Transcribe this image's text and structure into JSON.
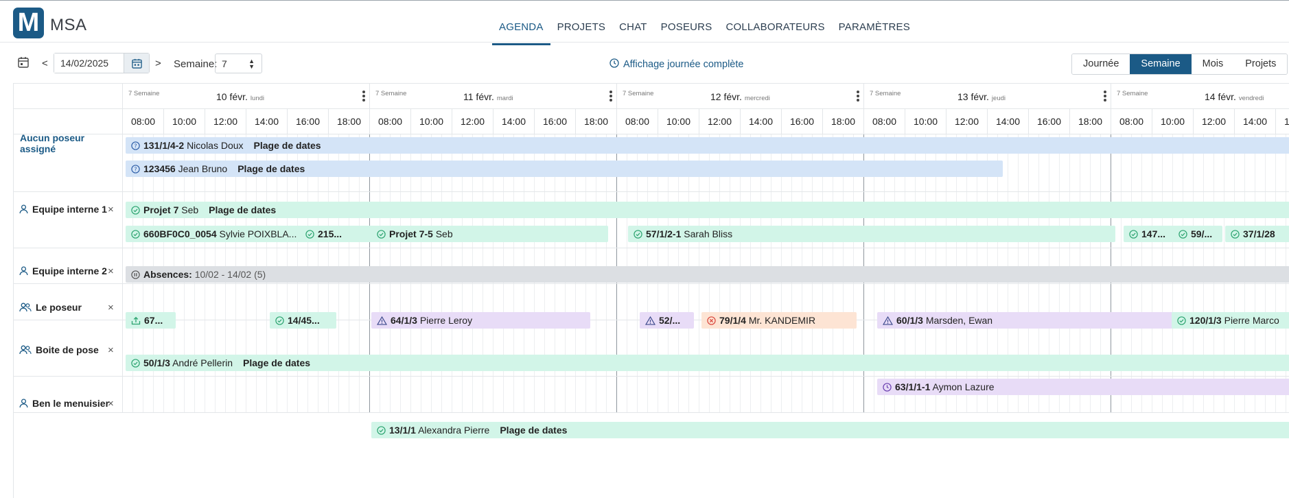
{
  "app": {
    "logo_letter": "M",
    "brand": "MSA"
  },
  "nav": {
    "items": [
      "AGENDA",
      "PROJETS",
      "CHAT",
      "POSEURS",
      "COLLABORATEURS",
      "PARAMÈTRES"
    ],
    "active": "AGENDA"
  },
  "toolbar": {
    "prev": "<",
    "next": ">",
    "date_value": "14/02/2025",
    "week_label": "Semaine:",
    "week_value": "7",
    "fullday_label": "Affichage journée complète",
    "views": [
      "Journée",
      "Semaine",
      "Mois",
      "Projets"
    ],
    "active_view": "Semaine"
  },
  "days": [
    {
      "week": "7 Semaine",
      "date": "10 févr.",
      "weekday": "lundi"
    },
    {
      "week": "7 Semaine",
      "date": "11 févr.",
      "weekday": "mardi"
    },
    {
      "week": "7 Semaine",
      "date": "12 févr.",
      "weekday": "mercredi"
    },
    {
      "week": "7 Semaine",
      "date": "13 févr.",
      "weekday": "jeudi"
    },
    {
      "week": "7 Semaine",
      "date": "14 févr.",
      "weekday": "vendredi"
    }
  ],
  "hours": [
    "08:00",
    "10:00",
    "12:00",
    "14:00",
    "16:00",
    "18:00"
  ],
  "rows": [
    {
      "label": "Aucun poseur assigné",
      "icon": "none",
      "removable": false
    },
    {
      "label": "Equipe interne 1",
      "icon": "user-icon",
      "removable": true
    },
    {
      "label": "Equipe interne 2",
      "icon": "user-icon",
      "removable": true
    },
    {
      "label": "Le poseur",
      "icon": "users-icon",
      "removable": true
    },
    {
      "label": "Boite de pose",
      "icon": "users-icon",
      "removable": true
    },
    {
      "label": "Ben le menuisier",
      "icon": "user-icon",
      "removable": true
    }
  ],
  "remove_symbol": "×",
  "events": [
    {
      "code": "131/1/4-2",
      "name": "Nicolas Doux",
      "tag": "Plage de dates",
      "color": "#d4e4f7",
      "status": "question-icon"
    },
    {
      "code": "123456",
      "name": "Jean Bruno",
      "tag": "Plage de dates",
      "color": "#d4e4f7",
      "status": "question-icon"
    },
    {
      "code": "Projet 7",
      "name": "Seb",
      "tag": "Plage de dates",
      "color": "#d2f5e8",
      "status": "check-icon"
    },
    {
      "code": "660BF0C0_0054",
      "name": "Sylvie POIXBLA...",
      "tag": "",
      "color": "#d2f5e8",
      "status": "check-icon"
    },
    {
      "code": "215...",
      "name": "",
      "tag": "",
      "color": "#d2f5e8",
      "status": "check-icon"
    },
    {
      "code": "Projet 7-5",
      "name": "Seb",
      "tag": "",
      "color": "#d2f5e8",
      "status": "check-icon"
    },
    {
      "code": "57/1/2-1",
      "name": "Sarah Bliss",
      "tag": "",
      "color": "#d2f5e8",
      "status": "check-icon"
    },
    {
      "code": "147...",
      "name": "",
      "tag": "",
      "color": "#d2f5e8",
      "status": "check-icon"
    },
    {
      "code": "59/...",
      "name": "",
      "tag": "",
      "color": "#d2f5e8",
      "status": "check-icon"
    },
    {
      "code": "37/1/28",
      "name": "",
      "tag": "",
      "color": "#d2f5e8",
      "status": "check-icon"
    },
    {
      "code": "Absences:",
      "name": "10/02 - 14/02 (5)",
      "tag": "",
      "color": "#dcdfe3",
      "status": "pause-icon"
    },
    {
      "code": "67...",
      "name": "",
      "tag": "",
      "color": "#d2f5e8",
      "status": "upload-icon"
    },
    {
      "code": "14/45...",
      "name": "",
      "tag": "",
      "color": "#d2f5e8",
      "status": "check-icon"
    },
    {
      "code": "64/1/3",
      "name": "Pierre Leroy",
      "tag": "",
      "color": "#e8dcf7",
      "status": "warning-icon"
    },
    {
      "code": "52/...",
      "name": "",
      "tag": "",
      "color": "#e8dcf7",
      "status": "warning-icon"
    },
    {
      "code": "79/1/4",
      "name": "Mr. KANDEMIR",
      "tag": "",
      "color": "#fde4d4",
      "status": "cancel-icon"
    },
    {
      "code": "60/1/3",
      "name": "Marsden, Ewan",
      "tag": "",
      "color": "#e8dcf7",
      "status": "warning-icon"
    },
    {
      "code": "120/1/3",
      "name": "Pierre Marco",
      "tag": "",
      "color": "#d2f5e8",
      "status": "check-icon"
    },
    {
      "code": "50/1/3",
      "name": "André Pellerin",
      "tag": "Plage de dates",
      "color": "#d2f5e8",
      "status": "check-icon"
    },
    {
      "code": "63/1/1-1",
      "name": "Aymon Lazure",
      "tag": "",
      "color": "#e8dcf7",
      "status": "clock-icon"
    },
    {
      "code": "13/1/1",
      "name": "Alexandra Pierre",
      "tag": "Plage de dates",
      "color": "#d2f5e8",
      "status": "check-icon"
    }
  ]
}
